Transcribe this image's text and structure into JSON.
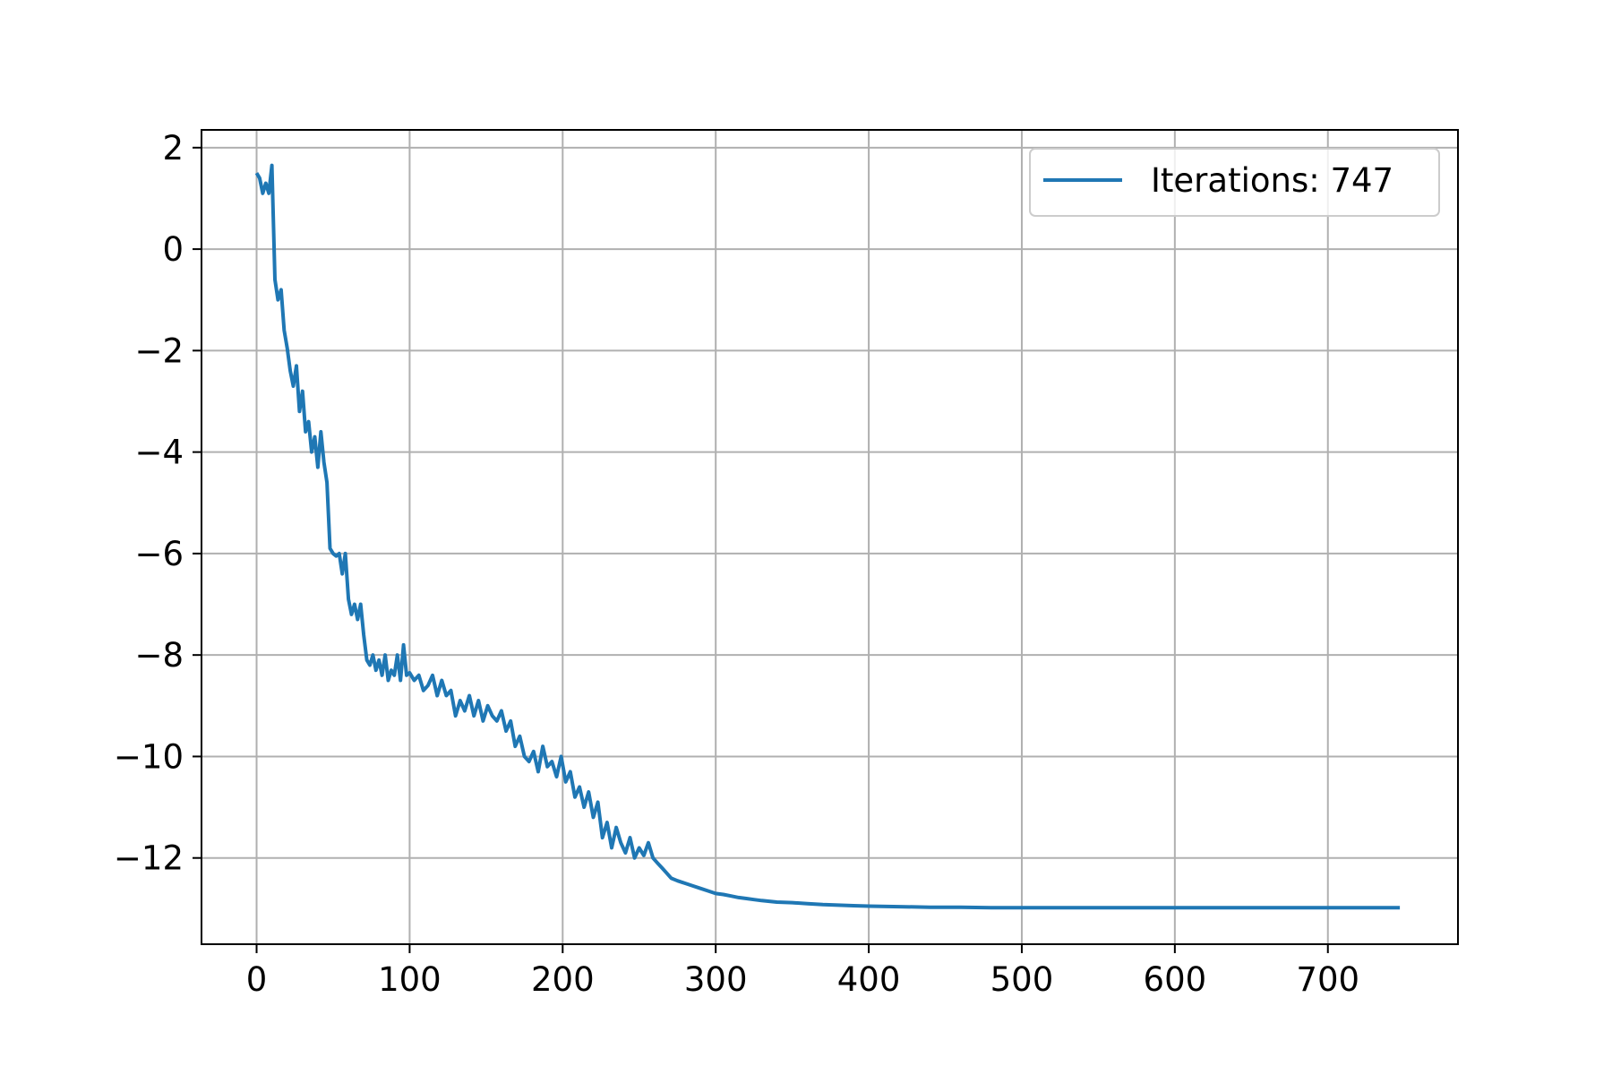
{
  "chart_data": {
    "type": "line",
    "title": "",
    "xlabel": "",
    "ylabel": "",
    "xlim": [
      -36,
      785
    ],
    "ylim": [
      -13.7,
      2.35
    ],
    "x_ticks": [
      0,
      100,
      200,
      300,
      400,
      500,
      600,
      700
    ],
    "x_tick_labels": [
      "0",
      "100",
      "200",
      "300",
      "400",
      "500",
      "600",
      "700"
    ],
    "y_ticks": [
      2,
      0,
      -2,
      -4,
      -6,
      -8,
      -10,
      -12
    ],
    "y_tick_labels": [
      "2",
      "0",
      "−2",
      "−4",
      "−6",
      "−8",
      "−10",
      "−12"
    ],
    "grid": true,
    "legend_position": "top-right",
    "colors": {
      "series": "#1f77b4",
      "grid": "#b0b0b0",
      "axes": "#000000"
    },
    "series": [
      {
        "name": "Iterations: 747",
        "x": [
          0,
          2,
          4,
          6,
          8,
          10,
          12,
          14,
          16,
          18,
          20,
          22,
          24,
          26,
          28,
          30,
          32,
          34,
          36,
          38,
          40,
          42,
          44,
          46,
          48,
          50,
          52,
          54,
          56,
          58,
          60,
          62,
          64,
          66,
          68,
          70,
          72,
          74,
          76,
          78,
          80,
          82,
          84,
          86,
          88,
          90,
          92,
          94,
          96,
          98,
          100,
          103,
          106,
          109,
          112,
          115,
          118,
          121,
          124,
          127,
          130,
          133,
          136,
          139,
          142,
          145,
          148,
          151,
          154,
          157,
          160,
          163,
          166,
          169,
          172,
          175,
          178,
          181,
          184,
          187,
          190,
          193,
          196,
          199,
          202,
          205,
          208,
          211,
          214,
          217,
          220,
          223,
          226,
          229,
          232,
          235,
          238,
          241,
          244,
          247,
          250,
          253,
          256,
          259,
          262,
          265,
          268,
          271,
          275,
          280,
          285,
          290,
          295,
          300,
          305,
          310,
          315,
          320,
          325,
          330,
          340,
          350,
          360,
          370,
          380,
          390,
          400,
          420,
          440,
          460,
          480,
          500,
          550,
          600,
          650,
          700,
          747
        ],
        "y": [
          1.5,
          1.4,
          1.1,
          1.3,
          1.1,
          1.65,
          -0.6,
          -1.0,
          -0.8,
          -1.6,
          -1.95,
          -2.4,
          -2.7,
          -2.3,
          -3.2,
          -2.8,
          -3.6,
          -3.4,
          -4.0,
          -3.7,
          -4.3,
          -3.6,
          -4.2,
          -4.6,
          -5.9,
          -6.0,
          -6.05,
          -6.0,
          -6.4,
          -6.0,
          -6.9,
          -7.2,
          -7.0,
          -7.3,
          -7.0,
          -7.6,
          -8.1,
          -8.2,
          -8.0,
          -8.3,
          -8.1,
          -8.4,
          -8.0,
          -8.5,
          -8.3,
          -8.4,
          -8.0,
          -8.5,
          -7.8,
          -8.4,
          -8.35,
          -8.5,
          -8.4,
          -8.7,
          -8.6,
          -8.4,
          -8.8,
          -8.5,
          -8.8,
          -8.7,
          -9.2,
          -8.9,
          -9.1,
          -8.8,
          -9.2,
          -8.9,
          -9.3,
          -9.0,
          -9.2,
          -9.3,
          -9.1,
          -9.5,
          -9.3,
          -9.8,
          -9.6,
          -10.0,
          -10.1,
          -9.9,
          -10.3,
          -9.8,
          -10.2,
          -10.1,
          -10.4,
          -10.0,
          -10.5,
          -10.3,
          -10.8,
          -10.6,
          -11.0,
          -10.7,
          -11.2,
          -10.9,
          -11.6,
          -11.3,
          -11.8,
          -11.4,
          -11.7,
          -11.9,
          -11.6,
          -12.0,
          -11.8,
          -11.95,
          -11.7,
          -12.0,
          -12.1,
          -12.2,
          -12.3,
          -12.4,
          -12.45,
          -12.5,
          -12.55,
          -12.6,
          -12.65,
          -12.7,
          -12.72,
          -12.75,
          -12.78,
          -12.8,
          -12.82,
          -12.84,
          -12.87,
          -12.88,
          -12.9,
          -12.92,
          -12.93,
          -12.94,
          -12.95,
          -12.96,
          -12.97,
          -12.97,
          -12.98,
          -12.98,
          -12.98,
          -12.98,
          -12.98,
          -12.98,
          -12.98
        ]
      }
    ]
  }
}
